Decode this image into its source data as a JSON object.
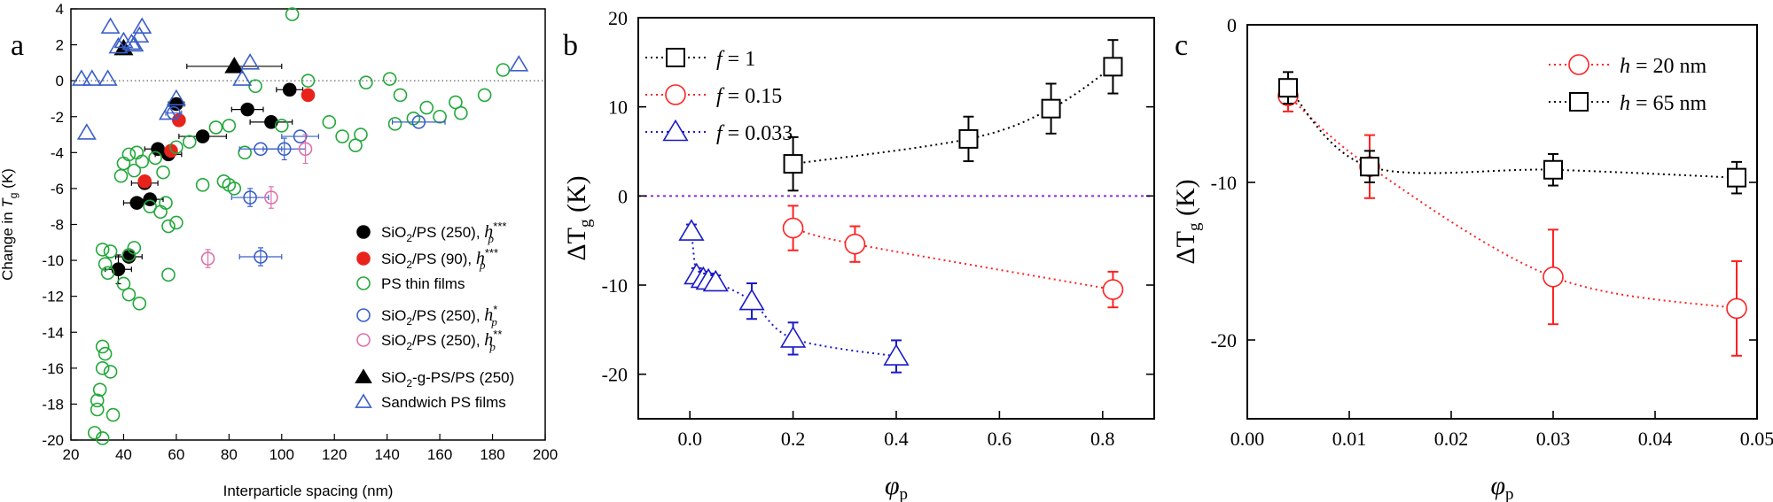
{
  "chart_data": [
    {
      "panel": "a",
      "type": "scatter",
      "xlabel": "Interparticle spacing (nm)",
      "ylabel": {
        "main": "Change in ",
        "var": "T",
        "sub": "g",
        "unit": " (K)"
      },
      "xlim": [
        20,
        200
      ],
      "ylim": [
        -20,
        4
      ],
      "xticks": [
        20,
        40,
        60,
        80,
        100,
        120,
        140,
        160,
        180,
        200
      ],
      "yticks": [
        4,
        2,
        0,
        -2,
        -4,
        -6,
        -8,
        -10,
        -12,
        -14,
        -16,
        -18,
        -20
      ],
      "reference_line_y": 0,
      "legend": [
        {
          "label": "SiO2/PS (250), hp***",
          "marker": "filled-circle",
          "color": "#000000"
        },
        {
          "label": "SiO2/PS (90), hp***",
          "marker": "filled-circle",
          "color": "#e8231c"
        },
        {
          "label": "PS thin films",
          "marker": "open-circle",
          "color": "#22a83a"
        },
        {
          "label": "SiO2/PS (250), hp*",
          "marker": "open-circle",
          "color": "#3a5fc8"
        },
        {
          "label": "SiO2/PS (250), hp**",
          "marker": "open-circle",
          "color": "#e070a8"
        },
        {
          "label": "SiO2-g-PS/PS (250)",
          "marker": "filled-triangle",
          "color": "#000000"
        },
        {
          "label": "Sandwich PS films",
          "marker": "open-triangle",
          "color": "#3a5fc8"
        }
      ],
      "series": [
        {
          "name": "SiO2/PS (250), hp***",
          "points": [
            [
              60,
              -1.3,
              3,
              0
            ],
            [
              103,
              -0.5,
              5,
              0
            ],
            [
              87,
              -1.6,
              6,
              0
            ],
            [
              96,
              -2.3,
              8,
              0
            ],
            [
              70,
              -3.1,
              9,
              0
            ],
            [
              53,
              -3.8,
              5,
              0
            ],
            [
              57,
              -4.1,
              5,
              0
            ],
            [
              48,
              -5.7,
              5,
              0
            ],
            [
              50,
              -6.6,
              5,
              0
            ],
            [
              45,
              -6.8,
              5,
              0
            ],
            [
              42,
              -9.8,
              5,
              0
            ],
            [
              38,
              -10.5,
              5,
              0.8
            ]
          ]
        },
        {
          "name": "SiO2/PS (90), hp***",
          "points": [
            [
              61,
              -2.2
            ],
            [
              58,
              -3.9
            ],
            [
              48,
              -5.6
            ],
            [
              110,
              -0.8
            ]
          ]
        },
        {
          "name": "PS thin films",
          "points": [
            [
              104,
              3.7
            ],
            [
              132,
              -0.1
            ],
            [
              141,
              0.1
            ],
            [
              110,
              0.0
            ],
            [
              184,
              0.6
            ],
            [
              90,
              -0.3
            ],
            [
              145,
              -0.8
            ],
            [
              177,
              -0.8
            ],
            [
              166,
              -1.2
            ],
            [
              155,
              -1.5
            ],
            [
              168,
              -1.8
            ],
            [
              160,
              -2.0
            ],
            [
              150,
              -2.1
            ],
            [
              143,
              -2.4
            ],
            [
              80,
              -2.5
            ],
            [
              75,
              -2.6
            ],
            [
              118,
              -2.3
            ],
            [
              100,
              -2.5
            ],
            [
              130,
              -3.0
            ],
            [
              123,
              -3.1
            ],
            [
              128,
              -3.6
            ],
            [
              86,
              -4.0
            ],
            [
              60,
              -3.7
            ],
            [
              65,
              -3.4
            ],
            [
              42,
              -4.1
            ],
            [
              45,
              -4.0
            ],
            [
              52,
              -4.3
            ],
            [
              47,
              -4.5
            ],
            [
              44,
              -5.0
            ],
            [
              55,
              -5.1
            ],
            [
              40,
              -4.6
            ],
            [
              39,
              -5.3
            ],
            [
              78,
              -5.6
            ],
            [
              70,
              -5.8
            ],
            [
              80,
              -5.8
            ],
            [
              82,
              -6.0
            ],
            [
              56,
              -6.8
            ],
            [
              54,
              -7.3
            ],
            [
              50,
              -7.0
            ],
            [
              60,
              -7.9
            ],
            [
              57,
              -8.1
            ],
            [
              32,
              -9.4
            ],
            [
              35,
              -9.5
            ],
            [
              44,
              -9.3
            ],
            [
              42,
              -9.7
            ],
            [
              33,
              -10.2
            ],
            [
              34,
              -10.7
            ],
            [
              57,
              -10.8
            ],
            [
              40,
              -11.3
            ],
            [
              42,
              -11.9
            ],
            [
              46,
              -12.4
            ],
            [
              32,
              -14.8
            ],
            [
              33,
              -15.2
            ],
            [
              32,
              -16.0
            ],
            [
              35,
              -16.2
            ],
            [
              31,
              -17.2
            ],
            [
              30,
              -17.8
            ],
            [
              30,
              -18.3
            ],
            [
              36,
              -18.6
            ],
            [
              29,
              -19.6
            ],
            [
              32,
              -19.9
            ]
          ]
        },
        {
          "name": "SiO2/PS (250), hp*",
          "points": [
            [
              107,
              -3.1,
              7,
              0
            ],
            [
              101,
              -3.8,
              8,
              0.6
            ],
            [
              92,
              -3.8,
              8,
              0
            ],
            [
              152,
              -2.3,
              10,
              0
            ],
            [
              88,
              -6.5,
              7,
              0.5
            ],
            [
              92,
              -9.8,
              8,
              0.5
            ],
            [
              59,
              -1.8,
              3,
              0
            ]
          ]
        },
        {
          "name": "SiO2/PS (250), hp**",
          "points": [
            [
              109,
              -3.8,
              0,
              0.8
            ],
            [
              96,
              -6.5,
              0,
              0.6
            ],
            [
              72,
              -9.9,
              0,
              0.5
            ]
          ]
        },
        {
          "name": "SiO2-g-PS/PS (250)",
          "points": [
            [
              40,
              1.8,
              0,
              0
            ],
            [
              82,
              0.8,
              18,
              0
            ]
          ]
        },
        {
          "name": "Sandwich PS films",
          "points": [
            [
              24,
              0.1
            ],
            [
              28,
              0.1
            ],
            [
              34,
              0.1
            ],
            [
              38,
              1.9
            ],
            [
              40,
              2.2
            ],
            [
              43,
              2.1
            ],
            [
              46,
              2.5
            ],
            [
              44,
              2.0
            ],
            [
              47,
              3.0
            ],
            [
              35,
              3.0
            ],
            [
              88,
              1.0
            ],
            [
              85,
              0.1
            ],
            [
              60,
              -1.0
            ],
            [
              57,
              -1.8
            ],
            [
              190,
              0.9
            ],
            [
              26,
              -2.9
            ]
          ]
        }
      ]
    },
    {
      "panel": "b",
      "type": "line",
      "xlabel": {
        "var": "φ",
        "sub": "p"
      },
      "ylabel": {
        "main": "ΔT",
        "sub": "g",
        "unit": " (K)"
      },
      "xlim": [
        -0.1,
        0.9
      ],
      "ylim": [
        -25,
        20
      ],
      "xticks": [
        0.0,
        0.2,
        0.4,
        0.6,
        0.8
      ],
      "xtick_labels": [
        "0.0",
        "0.2",
        "0.4",
        "0.6",
        "0.8"
      ],
      "yticks": [
        20,
        10,
        0,
        -10,
        -20
      ],
      "reference_line_y": 0,
      "legend_position": "top-left",
      "series": [
        {
          "name": "f = 1",
          "label_var": "f",
          "label_value": " = 1",
          "color": "#000000",
          "marker": "square",
          "x": [
            0.2,
            0.54,
            0.7,
            0.82
          ],
          "y": [
            3.6,
            6.4,
            9.8,
            14.5
          ],
          "err": [
            3.0,
            2.5,
            2.8,
            3.0
          ]
        },
        {
          "name": "f = 0.15",
          "label_var": "f",
          "label_value": " = 0.15",
          "color": "#ff2020",
          "marker": "circle",
          "x": [
            0.2,
            0.32,
            0.82
          ],
          "y": [
            -3.6,
            -5.4,
            -10.5
          ],
          "err": [
            2.5,
            2.0,
            2.0
          ]
        },
        {
          "name": "f = 0.033",
          "label_var": "f",
          "label_value": " = 0.033",
          "color": "#1a1ac8",
          "marker": "triangle",
          "x": [
            0.003,
            0.013,
            0.026,
            0.036,
            0.05,
            0.12,
            0.2,
            0.4
          ],
          "y": [
            -4.0,
            -8.9,
            -9.3,
            -9.5,
            -9.7,
            -11.8,
            -16.0,
            -18.0
          ],
          "err": [
            0.8,
            0.8,
            0.8,
            0.8,
            0.8,
            2.0,
            1.8,
            1.8
          ]
        }
      ]
    },
    {
      "panel": "c",
      "type": "line",
      "xlabel": {
        "var": "φ",
        "sub": "p"
      },
      "ylabel": {
        "main": "ΔT",
        "sub": "g",
        "unit": " (K)"
      },
      "xlim": [
        0.0,
        0.05
      ],
      "ylim": [
        -25,
        0
      ],
      "xticks": [
        0.0,
        0.01,
        0.02,
        0.03,
        0.04,
        0.05
      ],
      "xtick_labels": [
        "0.00",
        "0.01",
        "0.02",
        "0.03",
        "0.04",
        "0.05"
      ],
      "yticks": [
        0,
        -10,
        -20
      ],
      "legend_position": "top-right",
      "series": [
        {
          "name": "h = 20 nm",
          "label_var": "h",
          "label_value": " = 20 nm",
          "color": "#ff2020",
          "marker": "circle",
          "x": [
            0.004,
            0.012,
            0.03,
            0.048
          ],
          "y": [
            -4.5,
            -9.0,
            -16.0,
            -18.0
          ],
          "err": [
            1.0,
            2.0,
            3.0,
            3.0
          ]
        },
        {
          "name": "h = 65 nm",
          "label_var": "h",
          "label_value": " = 65 nm",
          "color": "#000000",
          "marker": "square",
          "x": [
            0.004,
            0.012,
            0.03,
            0.048
          ],
          "y": [
            -4.0,
            -9.0,
            -9.2,
            -9.7
          ],
          "err": [
            1.0,
            1.0,
            1.0,
            1.0
          ]
        }
      ]
    }
  ],
  "panel_labels": {
    "a": "a",
    "b": "b",
    "c": "c"
  }
}
